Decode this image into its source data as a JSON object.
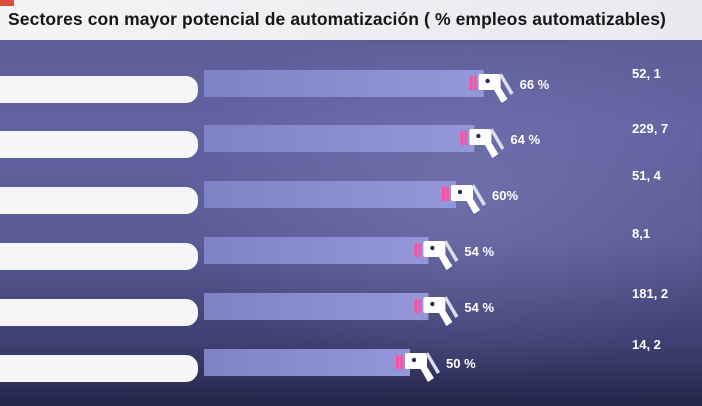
{
  "title": "Sectores con mayor potencial de automatización ( % empleos automatizables)",
  "chart_data": {
    "type": "bar",
    "orientation": "horizontal",
    "categories": [
      "",
      "",
      "",
      "",
      "",
      ""
    ],
    "values": [
      66,
      64,
      60,
      54,
      54,
      50
    ],
    "value_labels": [
      "66 %",
      "64 %",
      "60%",
      "54 %",
      "54 %",
      "50 %"
    ],
    "secondary_labels": [
      "52, 1",
      "229, 7",
      "51, 4",
      "8,1",
      "181, 2",
      "14, 2"
    ],
    "xlim": [
      0,
      100
    ],
    "grid": false,
    "legend": "none",
    "colors": {
      "bar": "#8b8ed0",
      "track": "#7275b3",
      "label_pill": "#f6f6f8",
      "icon": "#ffffff",
      "icon_accent": "#ff4fa0"
    }
  }
}
